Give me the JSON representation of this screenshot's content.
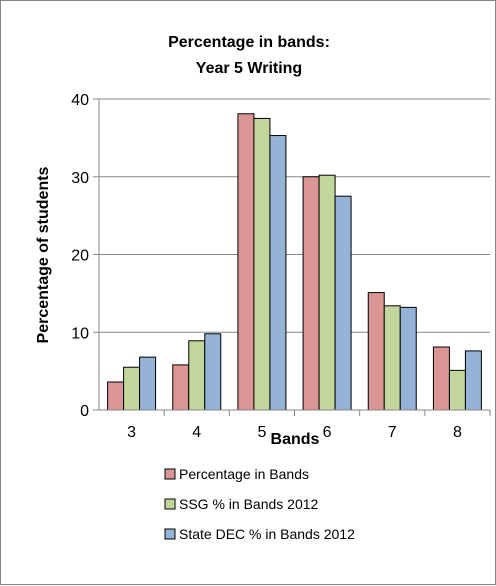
{
  "chart_data": {
    "type": "bar",
    "title_lines": [
      "Percentage in bands:",
      "Year 5 Writing"
    ],
    "xlabel": "Bands",
    "ylabel": "Percentage of students",
    "categories": [
      "3",
      "4",
      "5",
      "6",
      "7",
      "8"
    ],
    "ylim": [
      0,
      40
    ],
    "yticks": [
      0,
      10,
      20,
      30,
      40
    ],
    "grid": true,
    "legend_position": "bottom",
    "series": [
      {
        "name": "Percentage in Bands",
        "color": "#D99694",
        "values": [
          3.6,
          5.8,
          38.1,
          30.0,
          15.1,
          8.1
        ]
      },
      {
        "name": "SSG % in Bands 2012",
        "color": "#C3D69B",
        "values": [
          5.5,
          8.9,
          37.5,
          30.2,
          13.4,
          5.1
        ]
      },
      {
        "name": "State DEC % in Bands 2012",
        "color": "#95B3D7",
        "values": [
          6.8,
          9.8,
          35.3,
          27.5,
          13.2,
          7.6
        ]
      }
    ]
  }
}
